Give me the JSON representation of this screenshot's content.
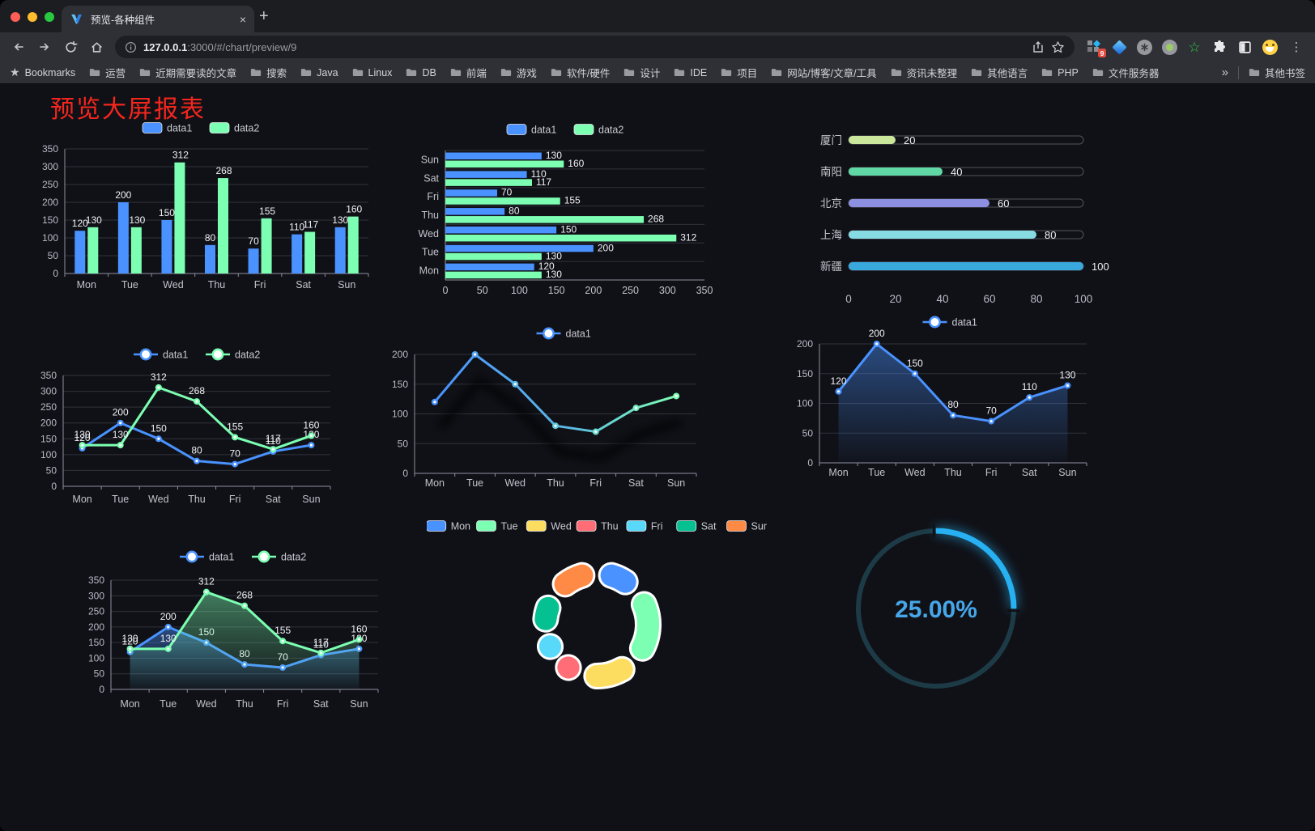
{
  "window": {
    "tab_title": "预览-各种组件",
    "close_glyph": "×",
    "new_tab_glyph": "+",
    "url_host": "127.0.0.1",
    "url_rest": ":3000/#/chart/preview/9",
    "extension_badge": "9",
    "menu_glyph": "⋮"
  },
  "bookmarks": {
    "bar_label": "Bookmarks",
    "items": [
      "运营",
      "近期需要读的文章",
      "搜索",
      "Java",
      "Linux",
      "DB",
      "前端",
      "游戏",
      "软件/硬件",
      "设计",
      "IDE",
      "项目",
      "网站/博客/文章/工具",
      "资讯未整理",
      "其他语言",
      "PHP",
      "文件服务器"
    ],
    "overflow_glyph": "»",
    "other_label": "其他书签"
  },
  "page": {
    "title": "预览大屏报表",
    "title_color": "#f5261d"
  },
  "chart_data": [
    {
      "id": "bar",
      "type": "bar",
      "categories": [
        "Mon",
        "Tue",
        "Wed",
        "Thu",
        "Fri",
        "Sat",
        "Sun"
      ],
      "series": [
        {
          "name": "data1",
          "color": "#4992ff",
          "values": [
            120,
            200,
            150,
            80,
            70,
            110,
            130
          ]
        },
        {
          "name": "data2",
          "color": "#7cffb2",
          "values": [
            130,
            130,
            312,
            268,
            155,
            117,
            160
          ]
        }
      ],
      "ylim": [
        0,
        350
      ],
      "ystep": 50,
      "legend_position": "top",
      "grid": true
    },
    {
      "id": "hbar",
      "type": "hbar",
      "categories": [
        "Mon",
        "Tue",
        "Wed",
        "Thu",
        "Fri",
        "Sat",
        "Sun"
      ],
      "series": [
        {
          "name": "data1",
          "color": "#4992ff",
          "values": [
            120,
            200,
            150,
            80,
            70,
            110,
            130
          ]
        },
        {
          "name": "data2",
          "color": "#7cffb2",
          "values": [
            130,
            130,
            312,
            268,
            155,
            117,
            160
          ]
        }
      ],
      "xlim": [
        0,
        350
      ],
      "xstep": 50,
      "legend_position": "top"
    },
    {
      "id": "capsule",
      "type": "capsule",
      "categories": [
        "厦门",
        "南阳",
        "北京",
        "上海",
        "新疆"
      ],
      "values": [
        20,
        40,
        60,
        80,
        100
      ],
      "colors": [
        "#cbe79c",
        "#5fd8a5",
        "#8d8fe0",
        "#87dce4",
        "#38a8dd"
      ],
      "xlim": [
        0,
        100
      ],
      "xticks": [
        0,
        20,
        40,
        60,
        80,
        100
      ]
    },
    {
      "id": "line2",
      "type": "line",
      "categories": [
        "Mon",
        "Tue",
        "Wed",
        "Thu",
        "Fri",
        "Sat",
        "Sun"
      ],
      "series": [
        {
          "name": "data1",
          "color": "#4992ff",
          "values": [
            120,
            200,
            150,
            80,
            70,
            110,
            130
          ],
          "area": false
        },
        {
          "name": "data2",
          "color": "#7cffb2",
          "values": [
            130,
            130,
            312,
            268,
            155,
            117,
            160
          ],
          "area": false
        }
      ],
      "ylim": [
        0,
        350
      ],
      "ystep": 50,
      "show_labels": true
    },
    {
      "id": "linegrad",
      "type": "line",
      "categories": [
        "Mon",
        "Tue",
        "Wed",
        "Thu",
        "Fri",
        "Sat",
        "Sun"
      ],
      "series": [
        {
          "name": "data1",
          "gradient": [
            "#4992ff",
            "#7cffb2"
          ],
          "values": [
            120,
            200,
            150,
            80,
            70,
            110,
            130
          ],
          "area": false
        }
      ],
      "ylim": [
        0,
        200
      ],
      "ystep": 50,
      "show_labels": false,
      "shadow": true
    },
    {
      "id": "linearea",
      "type": "line",
      "categories": [
        "Mon",
        "Tue",
        "Wed",
        "Thu",
        "Fri",
        "Sat",
        "Sun"
      ],
      "series": [
        {
          "name": "data1",
          "color": "#4992ff",
          "values": [
            120,
            200,
            150,
            80,
            70,
            110,
            130
          ],
          "area": true
        }
      ],
      "ylim": [
        0,
        200
      ],
      "ystep": 50,
      "show_labels": true
    },
    {
      "id": "lineareas",
      "type": "line",
      "categories": [
        "Mon",
        "Tue",
        "Wed",
        "Thu",
        "Fri",
        "Sat",
        "Sun"
      ],
      "series": [
        {
          "name": "data1",
          "color": "#4992ff",
          "values": [
            120,
            200,
            150,
            80,
            70,
            110,
            130
          ],
          "area": true
        },
        {
          "name": "data2",
          "color": "#7cffb2",
          "values": [
            130,
            130,
            312,
            268,
            155,
            117,
            160
          ],
          "area": true
        }
      ],
      "ylim": [
        0,
        350
      ],
      "ystep": 50,
      "show_labels": true
    },
    {
      "id": "donut",
      "type": "pie",
      "categories": [
        "Mon",
        "Tue",
        "Wed",
        "Thu",
        "Fri",
        "Sat",
        "Sun"
      ],
      "values": [
        120,
        200,
        150,
        80,
        70,
        110,
        130
      ],
      "colors": [
        "#4992ff",
        "#7cffb2",
        "#fddd60",
        "#ff6e76",
        "#58d9f9",
        "#05c091",
        "#ff8a45"
      ],
      "legend_position": "top"
    },
    {
      "id": "gauge",
      "type": "gauge",
      "value": 25,
      "display": "25.00%",
      "color": "#27b1f2",
      "track_color": "#1d3b46",
      "text_color": "#46a6e8"
    }
  ]
}
